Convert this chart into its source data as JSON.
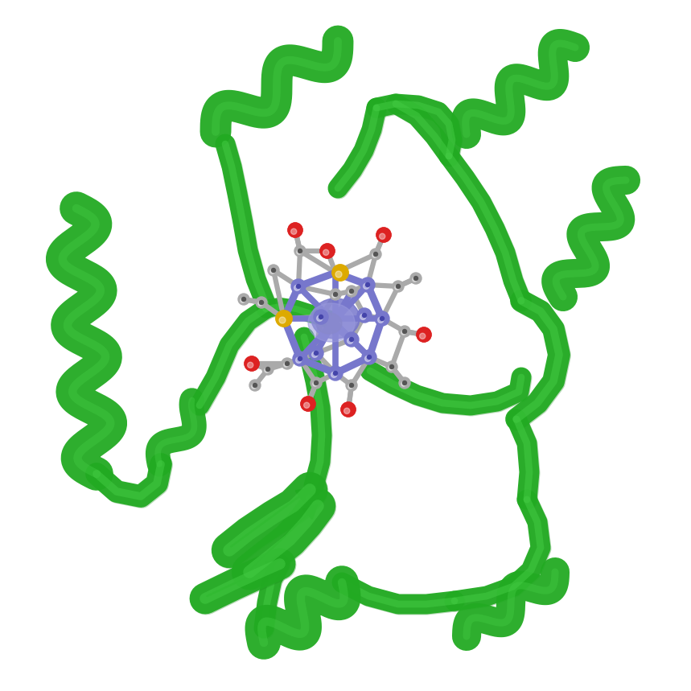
{
  "background_color": "#ffffff",
  "protein_color": "#22aa22",
  "protein_dark": "#1a8a1a",
  "protein_light": "#44cc44",
  "atom_gray": "#aaaaaa",
  "atom_blue": "#7777cc",
  "atom_red": "#dd2222",
  "atom_yellow": "#ddaa00",
  "atom_dark": "#555555",
  "figsize": [
    8.59,
    8.59
  ],
  "dpi": 100,
  "title": ""
}
